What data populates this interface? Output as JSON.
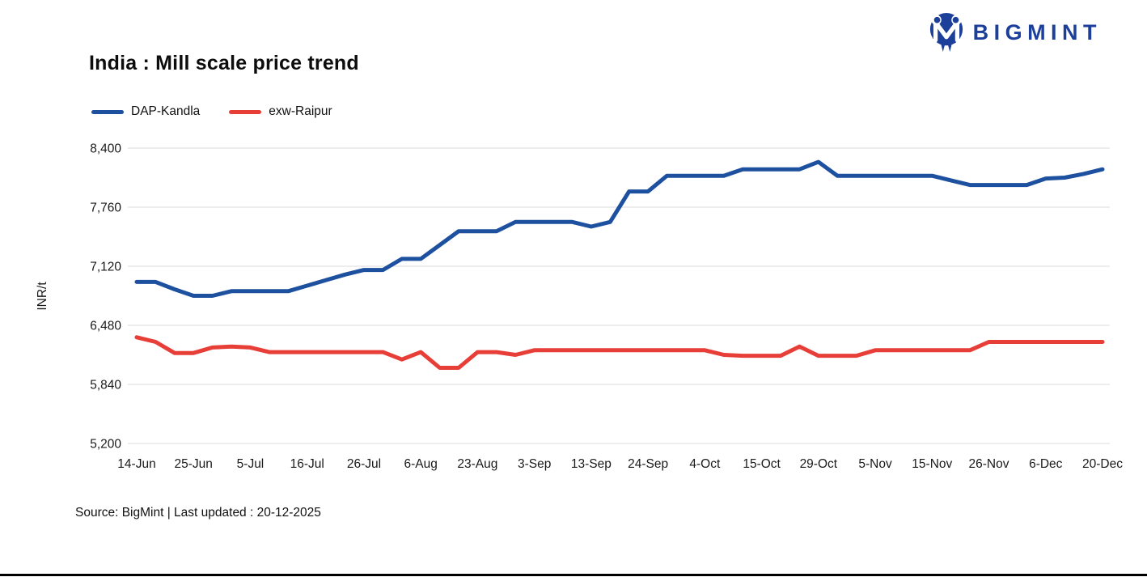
{
  "page": {
    "title": "India : Mill scale price trend",
    "source_note": "Source: BigMint | Last updated : 20-12-2025"
  },
  "brand": {
    "name": "BIGMINT",
    "color": "#1c3f9a"
  },
  "chart_data": {
    "type": "line",
    "title": "India : Mill scale price trend",
    "xlabel": "",
    "ylabel": "INR/t",
    "ylim": [
      5200,
      8400
    ],
    "yticks": [
      5200,
      5840,
      6480,
      7120,
      7760,
      8400
    ],
    "grid": "horizontal",
    "legend_position": "top-left",
    "x_tick_labels": [
      "14-Jun",
      "25-Jun",
      "5-Jul",
      "16-Jul",
      "26-Jul",
      "6-Aug",
      "23-Aug",
      "3-Sep",
      "13-Sep",
      "24-Sep",
      "4-Oct",
      "15-Oct",
      "29-Oct",
      "5-Nov",
      "15-Nov",
      "26-Nov",
      "6-Dec",
      "20-Dec"
    ],
    "points_per_label_interval": 3,
    "series": [
      {
        "name": "DAP-Kandla",
        "color": "#1d509f",
        "values": [
          6950,
          6950,
          6870,
          6800,
          6800,
          6850,
          6850,
          6850,
          6850,
          6910,
          6970,
          7030,
          7080,
          7080,
          7200,
          7200,
          7350,
          7500,
          7500,
          7500,
          7600,
          7600,
          7600,
          7600,
          7550,
          7600,
          7930,
          7930,
          8100,
          8100,
          8100,
          8100,
          8170,
          8170,
          8170,
          8170,
          8250,
          8100,
          8100,
          8100,
          8100,
          8100,
          8100,
          8050,
          8000,
          8000,
          8000,
          8000,
          8070,
          8080,
          8120,
          8170
        ]
      },
      {
        "name": "exw-Raipur",
        "color": "#e83e38",
        "values": [
          6350,
          6300,
          6180,
          6180,
          6240,
          6250,
          6240,
          6190,
          6190,
          6190,
          6190,
          6190,
          6190,
          6190,
          6110,
          6190,
          6020,
          6020,
          6190,
          6190,
          6160,
          6210,
          6210,
          6210,
          6210,
          6210,
          6210,
          6210,
          6210,
          6210,
          6210,
          6160,
          6150,
          6150,
          6150,
          6250,
          6150,
          6150,
          6150,
          6210,
          6210,
          6210,
          6210,
          6210,
          6210,
          6300,
          6300,
          6300,
          6300,
          6300,
          6300,
          6300
        ]
      }
    ]
  }
}
